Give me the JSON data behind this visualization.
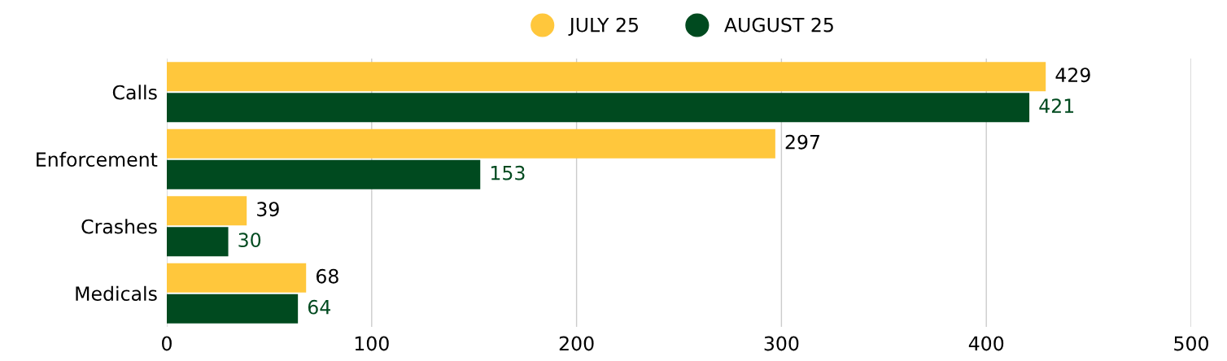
{
  "chart_data": {
    "type": "bar",
    "orientation": "horizontal",
    "categories": [
      "Calls",
      "Enforcement",
      "Crashes",
      "Medicals"
    ],
    "series": [
      {
        "name": "JULY 25",
        "color": "#ffc73c",
        "values": [
          429,
          297,
          39,
          68
        ]
      },
      {
        "name": "AUGUST 25",
        "color": "#004a1f",
        "values": [
          421,
          153,
          30,
          64
        ]
      }
    ],
    "xlim": [
      0,
      500
    ],
    "xticks": [
      0,
      100,
      200,
      300,
      400,
      500
    ],
    "grid": "x",
    "legend": "top",
    "data_labels": true
  }
}
